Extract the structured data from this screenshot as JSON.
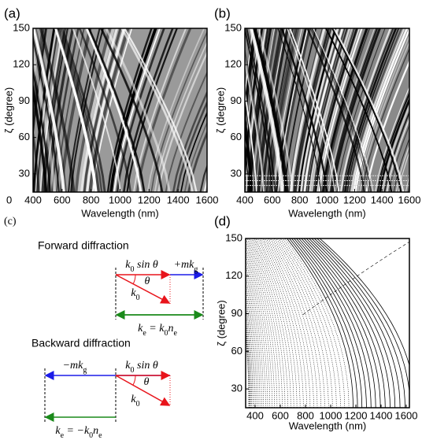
{
  "panels": [
    {
      "label": "(a)",
      "xlabel": "Wavelength (nm)",
      "ylabel": "ζ (degree)",
      "xlim": [
        400,
        1600
      ],
      "xticks": [
        400,
        600,
        800,
        1000,
        1200,
        1400,
        1600
      ],
      "ylim": [
        15,
        150
      ],
      "yticks": [
        30,
        60,
        90,
        120,
        150
      ],
      "extra_label": "0"
    },
    {
      "label": "(b)",
      "xlabel": "Wavelength (nm)",
      "ylabel": "ζ (degree)",
      "xlim": [
        400,
        1600
      ],
      "xticks": [
        400,
        600,
        800,
        1000,
        1200,
        1400,
        1600
      ],
      "ylim": [
        15,
        150
      ],
      "yticks": [
        30,
        60,
        90,
        120,
        150
      ]
    },
    {
      "label": "(d)",
      "xlabel": "Wavelength (nm)",
      "ylabel": "ζ (degree)",
      "xlim": [
        325,
        1625
      ],
      "xticks": [
        400,
        600,
        800,
        1000,
        1200,
        1400,
        1600
      ],
      "ylim": [
        15,
        150
      ],
      "yticks": [
        30,
        60,
        90,
        120,
        150
      ]
    }
  ],
  "panel_c": {
    "label": "(c)",
    "forward": {
      "title": "Forward diffraction",
      "ksin": [
        "k",
        "0",
        " sin θ"
      ],
      "mkg": [
        "+mk",
        "g"
      ],
      "theta": "θ",
      "k0": [
        "k",
        "0"
      ],
      "ke": [
        "k",
        "e",
        " = k",
        "0",
        "n",
        "e"
      ]
    },
    "backward": {
      "title": "Backward diffraction",
      "ksin": [
        "k",
        "0",
        " sin θ"
      ],
      "mkg": [
        "−mk",
        "g"
      ],
      "theta": "θ",
      "k0": [
        "k",
        "0"
      ],
      "ke": [
        "k",
        "e",
        " = −k",
        "0",
        "n",
        "e"
      ]
    }
  }
}
